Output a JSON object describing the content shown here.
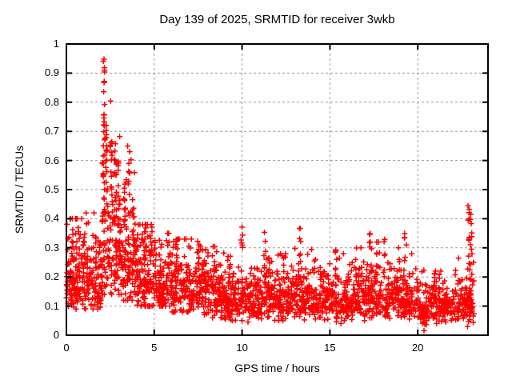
{
  "chart_data": {
    "type": "scatter",
    "title": "Day 139 of 2025, SRMTID for receiver 3wkb",
    "xlabel": "GPS time / hours",
    "ylabel": "SRMTID / TECUs",
    "xlim": [
      0,
      24
    ],
    "ylim": [
      0,
      1
    ],
    "xticks": [
      0,
      5,
      10,
      15,
      20
    ],
    "xtick_labels": [
      "0",
      "5",
      "10",
      "15",
      "20"
    ],
    "yticks": [
      0,
      0.1,
      0.2,
      0.3,
      0.4,
      0.5,
      0.6,
      0.7,
      0.8,
      0.9,
      1
    ],
    "ytick_labels": [
      "0",
      "0.1",
      "0.2",
      "0.3",
      "0.4",
      "0.5",
      "0.6",
      "0.7",
      "0.8",
      "0.9",
      "1"
    ],
    "grid": {
      "on": true,
      "color": "#999999",
      "dash": [
        3,
        3
      ]
    },
    "legend": "none",
    "marker": {
      "shape": "plus",
      "color": "#ff0000",
      "size": 7,
      "stroke": 1.5
    },
    "peak": {
      "x": 2.2,
      "y": 0.95
    },
    "data_start_x": 0,
    "data_end_x": 23.2,
    "seed": 1390,
    "base_band": [
      [
        0,
        1,
        130,
        0.09,
        0.19,
        0.4
      ],
      [
        1,
        2,
        115,
        0.09,
        0.18,
        0.42
      ],
      [
        2,
        2.6,
        70,
        0.14,
        0.3,
        0.92
      ],
      [
        2.6,
        3.2,
        75,
        0.14,
        0.28,
        0.7
      ],
      [
        3.2,
        4,
        95,
        0.12,
        0.24,
        0.62
      ],
      [
        4,
        5,
        115,
        0.1,
        0.2,
        0.38
      ],
      [
        5,
        6,
        105,
        0.1,
        0.18,
        0.35
      ],
      [
        6,
        7,
        105,
        0.08,
        0.17,
        0.33
      ],
      [
        7,
        8,
        105,
        0.07,
        0.16,
        0.33
      ],
      [
        8,
        9,
        100,
        0.06,
        0.14,
        0.3
      ],
      [
        9,
        10,
        100,
        0.05,
        0.12,
        0.27
      ],
      [
        10,
        11,
        95,
        0.04,
        0.12,
        0.23
      ],
      [
        11,
        12,
        100,
        0.05,
        0.13,
        0.28
      ],
      [
        12,
        13,
        100,
        0.05,
        0.13,
        0.28
      ],
      [
        13,
        14,
        100,
        0.05,
        0.13,
        0.3
      ],
      [
        14,
        15,
        95,
        0.04,
        0.12,
        0.26
      ],
      [
        15,
        16,
        95,
        0.04,
        0.12,
        0.28
      ],
      [
        16,
        17,
        95,
        0.05,
        0.13,
        0.3
      ],
      [
        17,
        18,
        100,
        0.06,
        0.14,
        0.32
      ],
      [
        18,
        19,
        95,
        0.05,
        0.13,
        0.3
      ],
      [
        19,
        20,
        95,
        0.04,
        0.12,
        0.28
      ],
      [
        20,
        21,
        90,
        0.02,
        0.1,
        0.24
      ],
      [
        21,
        22,
        90,
        0.04,
        0.1,
        0.22
      ],
      [
        22,
        23,
        95,
        0.03,
        0.11,
        0.3
      ],
      [
        23,
        23.2,
        25,
        0.03,
        0.12,
        0.25
      ]
    ],
    "streaks": [
      [
        0.35,
        0.25,
        0.42,
        8
      ],
      [
        1.0,
        0.24,
        0.37,
        6
      ],
      [
        1.7,
        0.22,
        0.34,
        6
      ],
      [
        2.15,
        0.38,
        0.95,
        34
      ],
      [
        2.3,
        0.42,
        0.78,
        14
      ],
      [
        2.55,
        0.45,
        0.68,
        12
      ],
      [
        2.8,
        0.4,
        0.66,
        13
      ],
      [
        3.0,
        0.35,
        0.6,
        11
      ],
      [
        3.3,
        0.36,
        0.55,
        13
      ],
      [
        3.55,
        0.4,
        0.65,
        10
      ],
      [
        3.8,
        0.28,
        0.46,
        8
      ],
      [
        4.5,
        0.24,
        0.37,
        10
      ],
      [
        4.8,
        0.26,
        0.35,
        7
      ],
      [
        5.4,
        0.2,
        0.32,
        6
      ],
      [
        6.3,
        0.2,
        0.33,
        7
      ],
      [
        7.5,
        0.22,
        0.33,
        9
      ],
      [
        8.4,
        0.2,
        0.31,
        6
      ],
      [
        9.3,
        0.17,
        0.3,
        5
      ],
      [
        10.0,
        0.2,
        0.38,
        6
      ],
      [
        11.3,
        0.2,
        0.38,
        6
      ],
      [
        12.4,
        0.18,
        0.3,
        5
      ],
      [
        13.3,
        0.2,
        0.4,
        7
      ],
      [
        14.5,
        0.17,
        0.3,
        5
      ],
      [
        15.3,
        0.17,
        0.3,
        5
      ],
      [
        16.5,
        0.18,
        0.3,
        5
      ],
      [
        17.3,
        0.2,
        0.37,
        6
      ],
      [
        17.7,
        0.2,
        0.33,
        5
      ],
      [
        18.1,
        0.2,
        0.35,
        6
      ],
      [
        19.3,
        0.2,
        0.35,
        6
      ],
      [
        20.3,
        0.005,
        0.09,
        6
      ],
      [
        21.0,
        0.14,
        0.27,
        5
      ],
      [
        22.9,
        0.08,
        0.47,
        16
      ],
      [
        23.05,
        0.12,
        0.44,
        10
      ]
    ]
  }
}
